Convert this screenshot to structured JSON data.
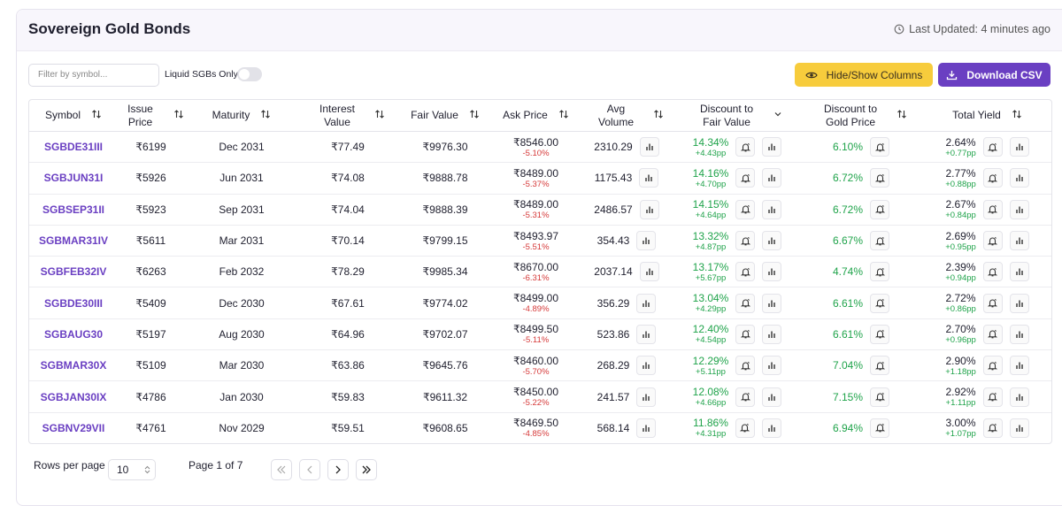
{
  "header": {
    "title": "Sovereign Gold Bonds",
    "last_updated": "Last Updated: 4 minutes ago"
  },
  "toolbar": {
    "filter_placeholder": "Filter by symbol...",
    "liquid_toggle": "Liquid SGBs Only",
    "hide_show": "Hide/Show Columns",
    "download": "Download CSV"
  },
  "table": {
    "columns": [
      "Symbol",
      "Issue Price",
      "Maturity",
      "Interest Value",
      "Fair Value",
      "Ask Price",
      "Avg Volume",
      "Discount to Fair Value",
      "Discount to Gold Price",
      "Total Yield"
    ],
    "rows": [
      {
        "symbol": "SGBDE31III",
        "issue_price": "₹6199",
        "maturity": "Dec 2031",
        "interest_value": "₹77.49",
        "fair_value": "₹9976.30",
        "ask_price": "₹8546.00",
        "ask_change": "-5.10%",
        "avg_volume": "2310.29",
        "discount_fair": "14.34%",
        "discount_fair_change": "+4.43pp",
        "discount_gold": "6.10%",
        "total_yield": "2.64%",
        "total_yield_change": "+0.77pp"
      },
      {
        "symbol": "SGBJUN31I",
        "issue_price": "₹5926",
        "maturity": "Jun 2031",
        "interest_value": "₹74.08",
        "fair_value": "₹9888.78",
        "ask_price": "₹8489.00",
        "ask_change": "-5.37%",
        "avg_volume": "1175.43",
        "discount_fair": "14.16%",
        "discount_fair_change": "+4.70pp",
        "discount_gold": "6.72%",
        "total_yield": "2.77%",
        "total_yield_change": "+0.88pp"
      },
      {
        "symbol": "SGBSEP31II",
        "issue_price": "₹5923",
        "maturity": "Sep 2031",
        "interest_value": "₹74.04",
        "fair_value": "₹9888.39",
        "ask_price": "₹8489.00",
        "ask_change": "-5.31%",
        "avg_volume": "2486.57",
        "discount_fair": "14.15%",
        "discount_fair_change": "+4.64pp",
        "discount_gold": "6.72%",
        "total_yield": "2.67%",
        "total_yield_change": "+0.84pp"
      },
      {
        "symbol": "SGBMAR31IV",
        "issue_price": "₹5611",
        "maturity": "Mar 2031",
        "interest_value": "₹70.14",
        "fair_value": "₹9799.15",
        "ask_price": "₹8493.97",
        "ask_change": "-5.51%",
        "avg_volume": "354.43",
        "discount_fair": "13.32%",
        "discount_fair_change": "+4.87pp",
        "discount_gold": "6.67%",
        "total_yield": "2.69%",
        "total_yield_change": "+0.95pp"
      },
      {
        "symbol": "SGBFEB32IV",
        "issue_price": "₹6263",
        "maturity": "Feb 2032",
        "interest_value": "₹78.29",
        "fair_value": "₹9985.34",
        "ask_price": "₹8670.00",
        "ask_change": "-6.31%",
        "avg_volume": "2037.14",
        "discount_fair": "13.17%",
        "discount_fair_change": "+5.67pp",
        "discount_gold": "4.74%",
        "total_yield": "2.39%",
        "total_yield_change": "+0.94pp"
      },
      {
        "symbol": "SGBDE30III",
        "issue_price": "₹5409",
        "maturity": "Dec 2030",
        "interest_value": "₹67.61",
        "fair_value": "₹9774.02",
        "ask_price": "₹8499.00",
        "ask_change": "-4.89%",
        "avg_volume": "356.29",
        "discount_fair": "13.04%",
        "discount_fair_change": "+4.29pp",
        "discount_gold": "6.61%",
        "total_yield": "2.72%",
        "total_yield_change": "+0.86pp"
      },
      {
        "symbol": "SGBAUG30",
        "issue_price": "₹5197",
        "maturity": "Aug 2030",
        "interest_value": "₹64.96",
        "fair_value": "₹9702.07",
        "ask_price": "₹8499.50",
        "ask_change": "-5.11%",
        "avg_volume": "523.86",
        "discount_fair": "12.40%",
        "discount_fair_change": "+4.54pp",
        "discount_gold": "6.61%",
        "total_yield": "2.70%",
        "total_yield_change": "+0.96pp"
      },
      {
        "symbol": "SGBMAR30X",
        "issue_price": "₹5109",
        "maturity": "Mar 2030",
        "interest_value": "₹63.86",
        "fair_value": "₹9645.76",
        "ask_price": "₹8460.00",
        "ask_change": "-5.70%",
        "avg_volume": "268.29",
        "discount_fair": "12.29%",
        "discount_fair_change": "+5.11pp",
        "discount_gold": "7.04%",
        "total_yield": "2.90%",
        "total_yield_change": "+1.18pp"
      },
      {
        "symbol": "SGBJAN30IX",
        "issue_price": "₹4786",
        "maturity": "Jan 2030",
        "interest_value": "₹59.83",
        "fair_value": "₹9611.32",
        "ask_price": "₹8450.00",
        "ask_change": "-5.22%",
        "avg_volume": "241.57",
        "discount_fair": "12.08%",
        "discount_fair_change": "+4.66pp",
        "discount_gold": "7.15%",
        "total_yield": "2.92%",
        "total_yield_change": "+1.11pp"
      },
      {
        "symbol": "SGBNV29VII",
        "issue_price": "₹4761",
        "maturity": "Nov 2029",
        "interest_value": "₹59.51",
        "fair_value": "₹9608.65",
        "ask_price": "₹8469.50",
        "ask_change": "-4.85%",
        "avg_volume": "568.14",
        "discount_fair": "11.86%",
        "discount_fair_change": "+4.31pp",
        "discount_gold": "6.94%",
        "total_yield": "3.00%",
        "total_yield_change": "+1.07pp"
      }
    ]
  },
  "pagination": {
    "rows_per_page_label": "Rows per page",
    "rows_per_page": "10",
    "page": "Page 1 of 7"
  }
}
